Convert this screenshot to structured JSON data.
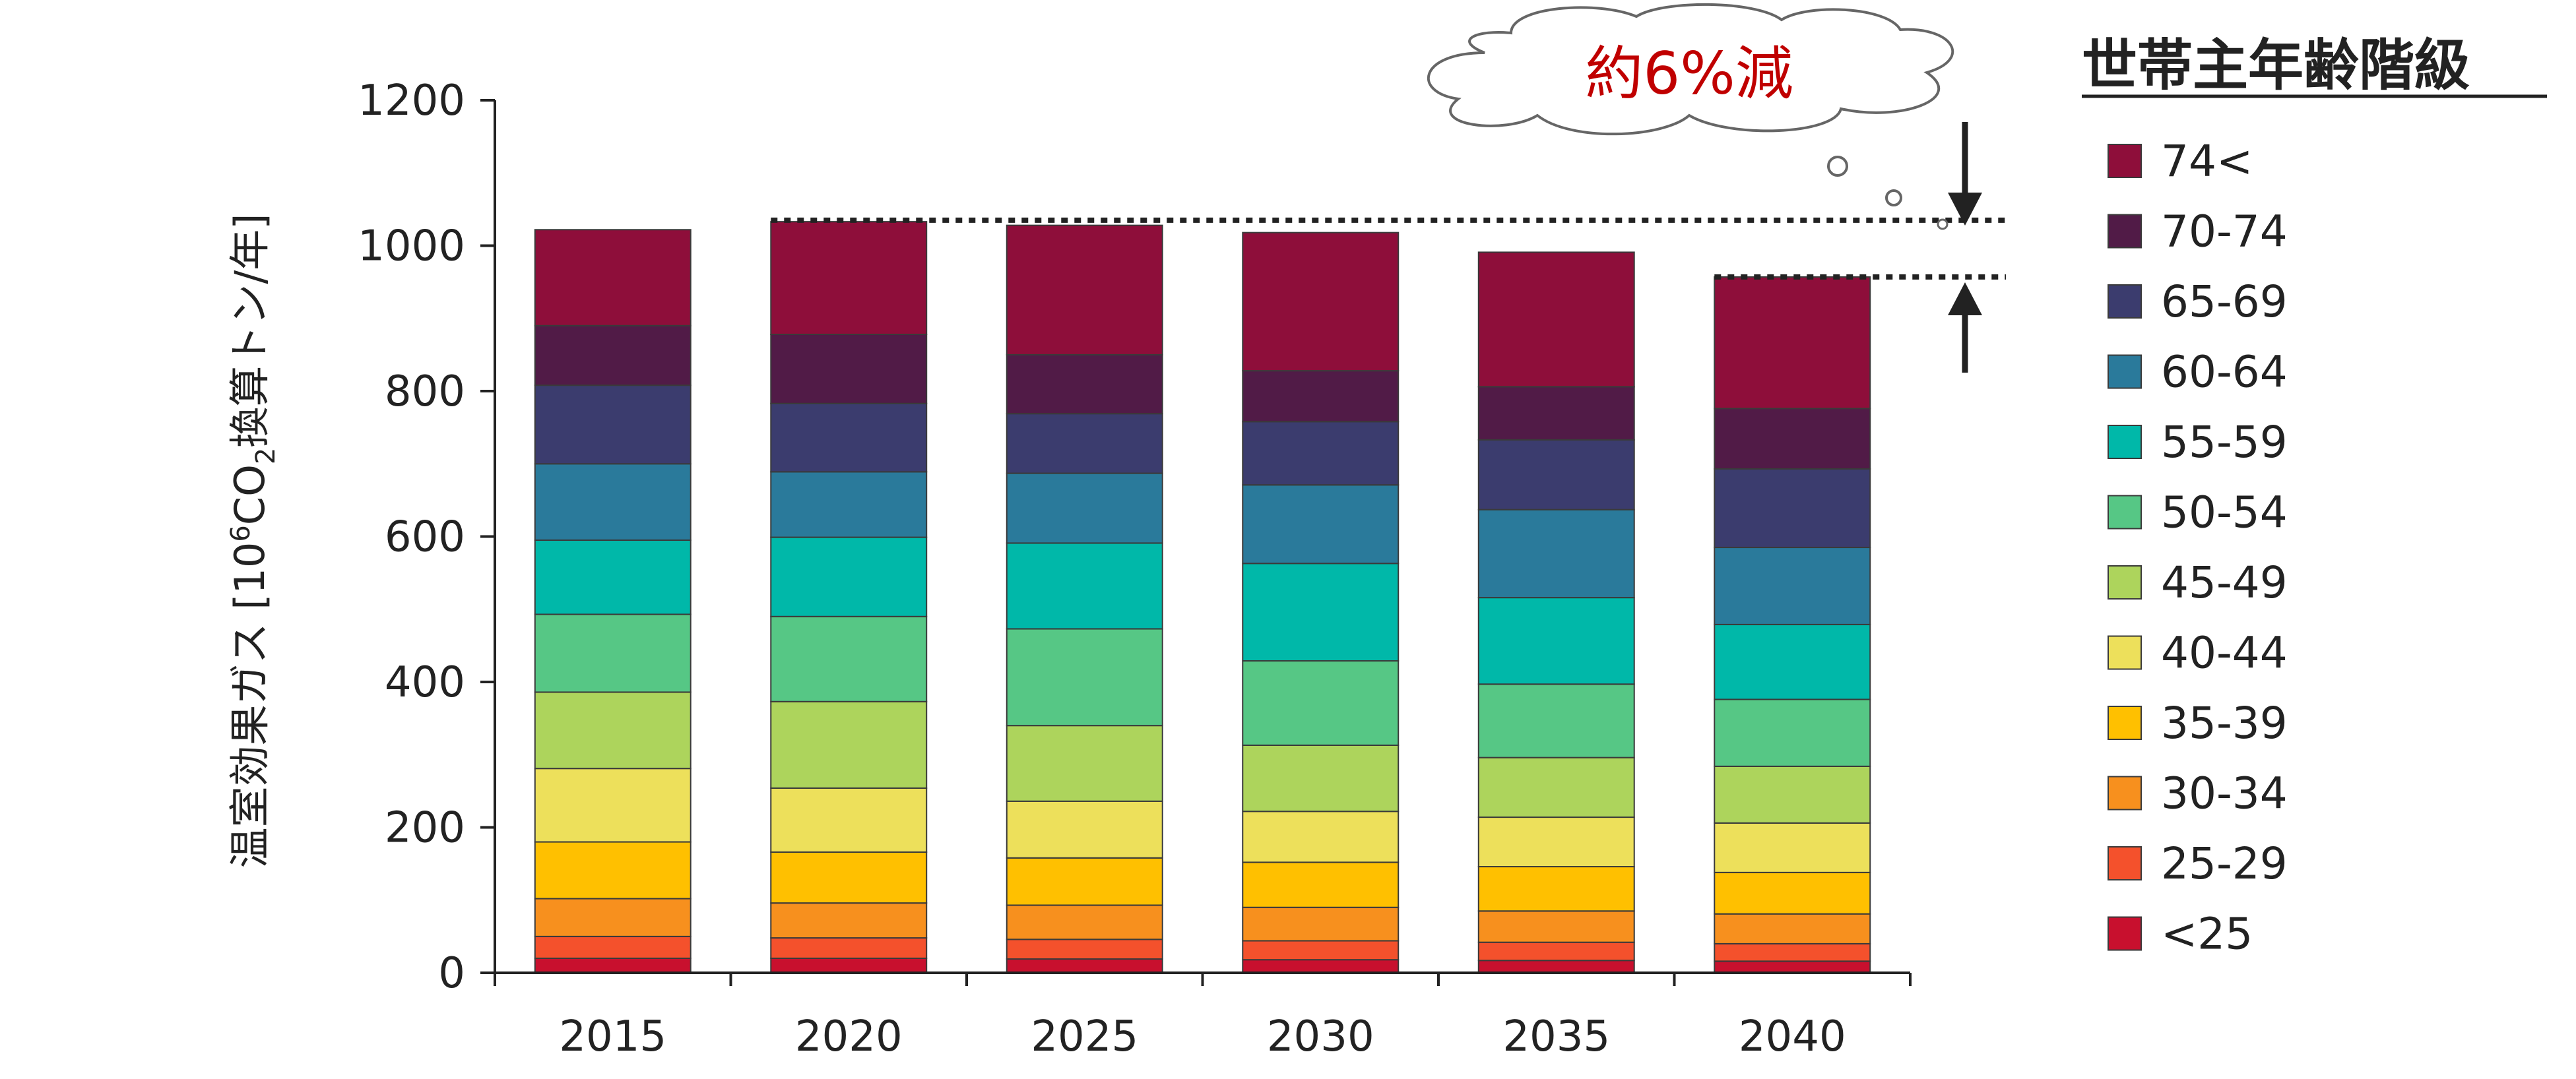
{
  "chart_data": {
    "type": "bar",
    "stacked": true,
    "categories": [
      "2015",
      "2020",
      "2025",
      "2030",
      "2035",
      "2040"
    ],
    "ylabel": "温室効果ガス [10⁶CO₂換算トン/年]",
    "ylabel_parts": {
      "main": "温室効果ガス [10",
      "sup": "6",
      "mid": "CO",
      "sub": "2",
      "tail": "換算トン/年]"
    },
    "ylim": [
      0,
      1200
    ],
    "yticks": [
      0,
      200,
      400,
      600,
      800,
      1000,
      1200
    ],
    "legend_title": "世帯主年齢階級",
    "legend_position": "right",
    "series": [
      {
        "name": "<25",
        "color": "#c8102e",
        "values": [
          20,
          20,
          19,
          18,
          17,
          16
        ]
      },
      {
        "name": "25-29",
        "color": "#f4512c",
        "values": [
          30,
          28,
          27,
          26,
          25,
          24
        ]
      },
      {
        "name": "30-34",
        "color": "#f7901e",
        "values": [
          52,
          48,
          47,
          46,
          43,
          41
        ]
      },
      {
        "name": "35-39",
        "color": "#ffc000",
        "values": [
          78,
          70,
          65,
          62,
          61,
          57
        ]
      },
      {
        "name": "40-44",
        "color": "#ede05b",
        "values": [
          101,
          88,
          78,
          70,
          68,
          68
        ]
      },
      {
        "name": "45-49",
        "color": "#add45c",
        "values": [
          105,
          119,
          104,
          91,
          82,
          78
        ]
      },
      {
        "name": "50-54",
        "color": "#56c785",
        "values": [
          107,
          117,
          133,
          116,
          101,
          92
        ]
      },
      {
        "name": "55-59",
        "color": "#00b8a9",
        "values": [
          102,
          109,
          118,
          134,
          119,
          103
        ]
      },
      {
        "name": "60-64",
        "color": "#2a7a9b",
        "values": [
          105,
          90,
          96,
          108,
          121,
          106
        ]
      },
      {
        "name": "65-69",
        "color": "#3b3c6e",
        "values": [
          108,
          94,
          82,
          87,
          96,
          108
        ]
      },
      {
        "name": "70-74",
        "color": "#511b47",
        "values": [
          82,
          95,
          81,
          70,
          73,
          83
        ]
      },
      {
        "name": "74<",
        "color": "#8e0e3a",
        "values": [
          132,
          155,
          178,
          190,
          185,
          181
        ]
      }
    ],
    "callout_text": "約6%減",
    "reference_lines": [
      1035,
      957
    ]
  }
}
